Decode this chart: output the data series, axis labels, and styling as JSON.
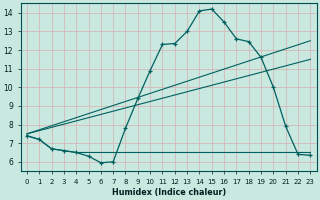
{
  "xlabel": "Humidex (Indice chaleur)",
  "ylabel": "",
  "bg_color": "#c8e8e0",
  "grid_color": "#d4b8b8",
  "line_color": "#006060",
  "xlim": [
    -0.5,
    23.5
  ],
  "ylim": [
    5.5,
    14.5
  ],
  "xticks": [
    0,
    1,
    2,
    3,
    4,
    5,
    6,
    7,
    8,
    9,
    10,
    11,
    12,
    13,
    14,
    15,
    16,
    17,
    18,
    19,
    20,
    21,
    22,
    23
  ],
  "yticks": [
    6,
    7,
    8,
    9,
    10,
    11,
    12,
    13,
    14
  ],
  "series1_x": [
    0,
    1,
    2,
    3,
    4,
    5,
    6,
    7,
    8,
    9,
    10,
    11,
    12,
    13,
    14,
    15,
    16,
    17,
    18,
    19,
    20,
    21,
    22,
    23
  ],
  "series1_y": [
    7.4,
    7.2,
    6.7,
    6.6,
    6.5,
    6.3,
    5.95,
    6.0,
    7.8,
    9.4,
    10.9,
    12.3,
    12.35,
    13.0,
    14.1,
    14.2,
    13.5,
    12.6,
    12.45,
    11.6,
    10.0,
    7.9,
    6.4,
    6.35
  ],
  "series2_x": [
    0,
    1,
    2,
    3,
    4,
    5,
    6,
    7,
    8,
    9,
    10,
    11,
    12,
    13,
    14,
    15,
    16,
    17,
    18,
    19,
    20,
    21,
    22,
    23
  ],
  "series2_y": [
    7.4,
    7.2,
    6.7,
    6.6,
    6.5,
    6.5,
    6.5,
    6.5,
    6.5,
    6.5,
    6.5,
    6.5,
    6.5,
    6.5,
    6.5,
    6.5,
    6.5,
    6.5,
    6.5,
    6.5,
    6.5,
    6.5,
    6.5,
    6.5
  ],
  "trend1_x": [
    0,
    23
  ],
  "trend1_y": [
    7.5,
    12.5
  ],
  "trend2_x": [
    0,
    23
  ],
  "trend2_y": [
    7.5,
    11.5
  ]
}
